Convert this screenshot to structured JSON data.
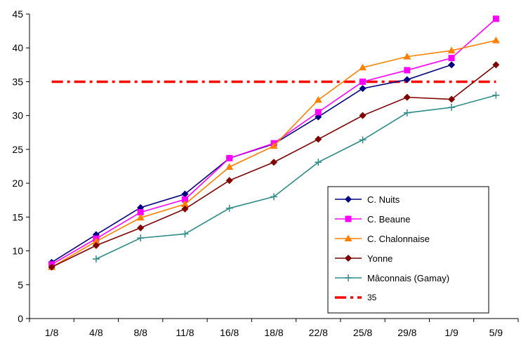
{
  "chart_data": {
    "type": "line",
    "title": "",
    "xlabel": "",
    "ylabel": "",
    "categories": [
      "1/8",
      "4/8",
      "8/8",
      "11/8",
      "16/8",
      "18/8",
      "22/8",
      "25/8",
      "29/8",
      "1/9",
      "5/9"
    ],
    "ylim": [
      0,
      45
    ],
    "yticks": [
      0,
      5,
      10,
      15,
      20,
      25,
      30,
      35,
      40,
      45
    ],
    "grid": false,
    "legend_position": "bottom-right",
    "series": [
      {
        "name": "C. Nuits",
        "color": "#000080",
        "marker": "diamond",
        "values": [
          8.3,
          12.4,
          16.4,
          18.4,
          23.7,
          25.8,
          29.8,
          34.0,
          35.3,
          37.5,
          null
        ]
      },
      {
        "name": "C. Beaune",
        "color": "#FF00FF",
        "marker": "square",
        "values": [
          8.0,
          11.8,
          15.7,
          17.6,
          23.7,
          25.9,
          30.5,
          35.0,
          36.7,
          38.5,
          44.3
        ]
      },
      {
        "name": "C. Chalonnaise",
        "color": "#FF7F00",
        "marker": "triangle",
        "values": [
          7.6,
          11.4,
          14.9,
          16.9,
          22.4,
          25.5,
          32.3,
          37.1,
          38.7,
          39.6,
          41.1
        ]
      },
      {
        "name": "Yonne",
        "color": "#800000",
        "marker": "diamond",
        "values": [
          7.6,
          10.8,
          13.4,
          16.2,
          20.4,
          23.1,
          26.5,
          30.0,
          32.7,
          32.4,
          37.5
        ]
      },
      {
        "name": "Mâconnais (Gamay)",
        "color": "#2E8B8B",
        "marker": "plus",
        "values": [
          null,
          8.8,
          11.9,
          12.5,
          16.3,
          18.0,
          23.1,
          26.4,
          30.4,
          31.2,
          33.0
        ]
      }
    ],
    "reference_line": {
      "name": "35",
      "value": 35,
      "color": "#FF0000",
      "style": "dash-dot"
    }
  }
}
